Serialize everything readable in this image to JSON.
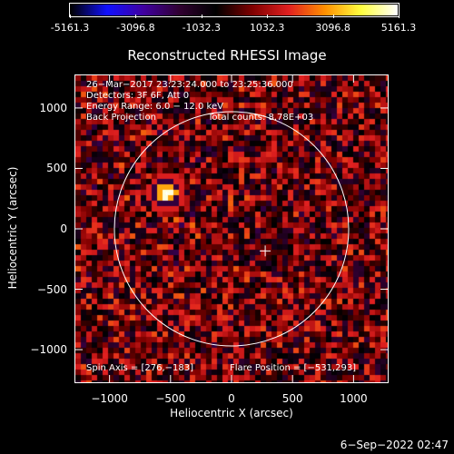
{
  "colorbar": {
    "ticks": [
      "-5161.3",
      "-3096.8",
      "-1032.3",
      "1032.3",
      "3096.8",
      "5161.3"
    ],
    "tick_values": [
      -5161.3,
      -3096.8,
      -1032.3,
      1032.3,
      3096.8,
      5161.3
    ],
    "range": [
      -5161.3,
      5161.3
    ],
    "colormap": [
      "#000000",
      "#1010ff",
      "#4000a0",
      "#300030",
      "#000000",
      "#800000",
      "#e02020",
      "#ff9000",
      "#ffff40",
      "#ffffff"
    ]
  },
  "chart_data": {
    "type": "heatmap",
    "title": "Reconstructed RHESSI Image",
    "xlabel": "Heliocentric X (arcsec)",
    "ylabel": "Heliocentric Y (arcsec)",
    "xlim": [
      -1280,
      1280
    ],
    "ylim": [
      -1270,
      1270
    ],
    "xticks": [
      -1000,
      -500,
      0,
      500,
      1000
    ],
    "yticks": [
      1000,
      500,
      0,
      -500,
      -1000
    ],
    "xtick_labels": [
      "−1000",
      "−500",
      "0",
      "500",
      "1000"
    ],
    "ytick_labels": [
      "1000",
      "500",
      "0",
      "−500",
      "−1000"
    ],
    "annotations": {
      "time_range": "26−Mar−2017 23:23:24.000 to 23:25:36.000",
      "detectors": "Detectors: 3F 6F, Att 0",
      "energy": "Energy Range: 6.0 − 12.0 keV",
      "method": "Back Projection",
      "counts": "Total counts: 8.78E+03",
      "spin_axis": "Spin Axis = [276,−183]",
      "flare_position": "Flare Position = [−531,293]"
    },
    "solar_disk": {
      "center": [
        0,
        0
      ],
      "radius": 960
    },
    "source": {
      "x": -531,
      "y": 293
    },
    "spin_axis_marker": {
      "x": 276,
      "y": -183
    },
    "grid": false
  },
  "footer": {
    "date": "6−Sep−2022 02:47"
  }
}
